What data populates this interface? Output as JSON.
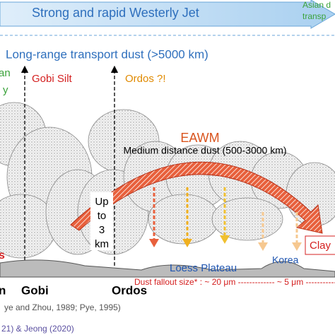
{
  "header": {
    "title": "Strong and rapid Westerly Jet",
    "corner": [
      "Asian d",
      "transp"
    ]
  },
  "long_range": "Long-range transport dust (>5000 km)",
  "left_cropped": [
    "an",
    "y"
  ],
  "sources": {
    "gobi_silt": "Gobi Silt",
    "ordos": "Ordos ?!"
  },
  "eawm": {
    "title": "EAWM",
    "subtitle": "Medium distance dust (500-3000 km)"
  },
  "height_box": [
    "Up",
    "to",
    "3",
    "km"
  ],
  "places": {
    "loess": "Loess Plateau",
    "korea": "Korea",
    "clay": "Clay",
    "left_red": "s"
  },
  "bottom_labels": [
    "n",
    "Gobi",
    "Ordos"
  ],
  "fallout": "Dust fallout size* : ~ 20 μm ------------- ~ 5 μm ------------",
  "references": [
    "ye and Zhou, 1989; Pye, 1995)",
    "21) & Jeong (2020)"
  ]
}
